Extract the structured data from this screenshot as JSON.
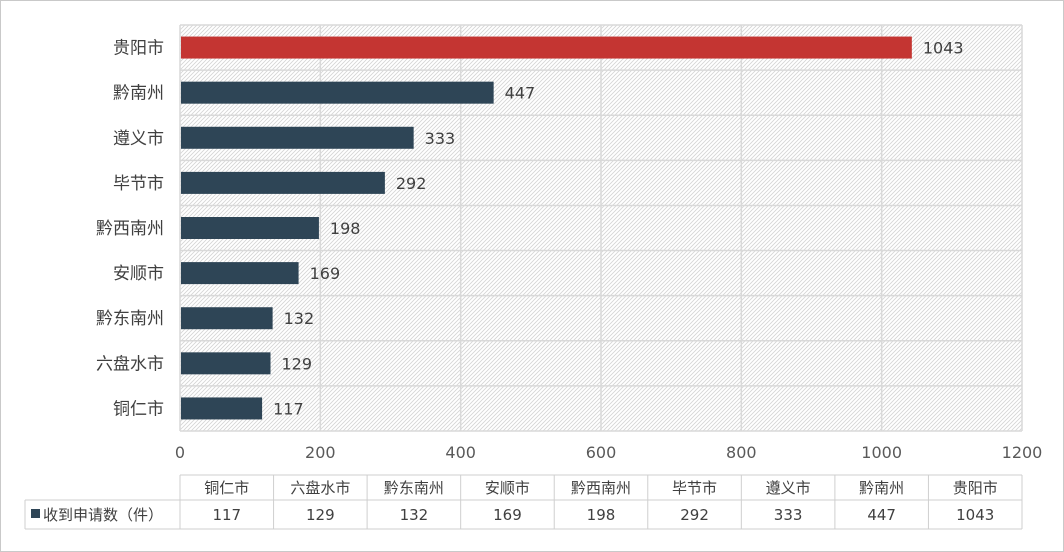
{
  "chart_data": {
    "type": "bar",
    "orientation": "horizontal",
    "categories": [
      "铜仁市",
      "六盘水市",
      "黔东南州",
      "安顺市",
      "黔西南州",
      "毕节市",
      "遵义市",
      "黔南州",
      "贵阳市"
    ],
    "series": [
      {
        "name": "收到申请数（件）",
        "values": [
          117,
          129,
          132,
          169,
          198,
          292,
          333,
          447,
          1043
        ]
      }
    ],
    "highlight_category": "贵阳市",
    "colors": {
      "bar": "#2e4556",
      "highlight": "#c43532",
      "grid": "#d9d9d9"
    },
    "xlim": [
      0,
      1200
    ],
    "xticks": [
      0,
      200,
      400,
      600,
      800,
      1000,
      1200
    ],
    "grid": true,
    "data_table": true
  }
}
